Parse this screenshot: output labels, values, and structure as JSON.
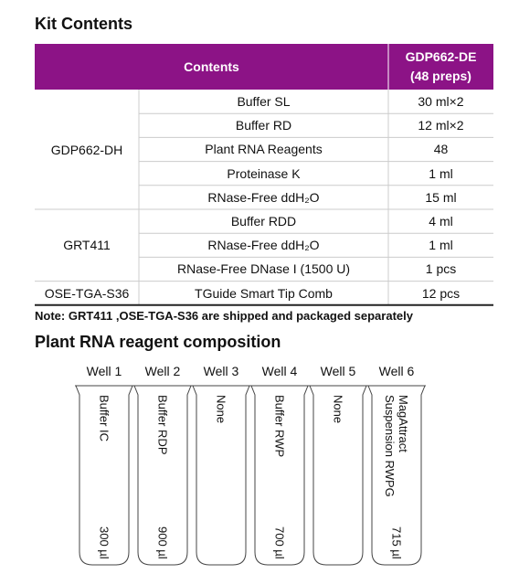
{
  "title": "Kit Contents",
  "table": {
    "header": {
      "contents": "Contents",
      "product": "GDP662-DE",
      "preps": "(48 preps)"
    },
    "groups": [
      {
        "name": "GDP662-DH",
        "rows": [
          [
            "Buffer SL",
            "30 ml×2"
          ],
          [
            "Buffer RD",
            "12 ml×2"
          ],
          [
            "Plant RNA Reagents",
            "48"
          ],
          [
            "Proteinase K",
            "1 ml"
          ],
          [
            "RNase-Free ddH₂O",
            "15 ml"
          ]
        ]
      },
      {
        "name": "GRT411",
        "rows": [
          [
            "Buffer RDD",
            "4 ml"
          ],
          [
            "RNase-Free ddH₂O",
            "1 ml"
          ],
          [
            "RNase-Free DNase I (1500 U)",
            "1 pcs"
          ]
        ]
      },
      {
        "name": "OSE-TGA-S36",
        "rows": [
          [
            "TGuide Smart Tip Comb",
            "12 pcs"
          ]
        ]
      }
    ]
  },
  "note": "Note: GRT411 ,OSE-TGA-S36 are shipped and packaged separately",
  "composition": {
    "title": "Plant RNA reagent composition",
    "wells": [
      {
        "label": "Well 1",
        "content": [
          "Buffer IC"
        ],
        "volume": "300 µl"
      },
      {
        "label": "Well 2",
        "content": [
          "Buffer RDP"
        ],
        "volume": "900 µl"
      },
      {
        "label": "Well 3",
        "content": [
          "None"
        ]
      },
      {
        "label": "Well 4",
        "content": [
          "Buffer RWP"
        ],
        "volume": "700 µl"
      },
      {
        "label": "Well 5",
        "content": [
          "None"
        ]
      },
      {
        "label": "Well 6",
        "content": [
          "MagAttract",
          "Suspension RWPG"
        ],
        "volume": "715 µl"
      }
    ]
  }
}
